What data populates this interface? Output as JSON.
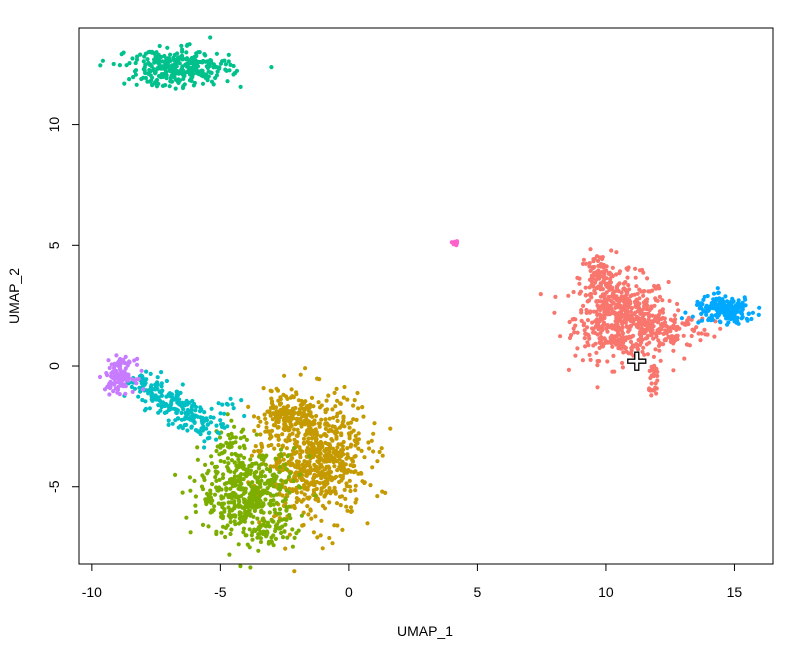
{
  "chart_data": {
    "type": "scatter",
    "title": "",
    "xlabel": "UMAP_1",
    "ylabel": "UMAP_2",
    "xlim": [
      -10.5,
      16.5
    ],
    "ylim": [
      -8.2,
      14.0
    ],
    "x_ticks": [
      -10,
      -5,
      0,
      5,
      10,
      15
    ],
    "x_tick_labels": [
      "-10",
      "-5",
      "0",
      "5",
      "10",
      "15"
    ],
    "y_ticks": [
      -5,
      0,
      5,
      10
    ],
    "y_tick_labels": [
      "-5",
      "0",
      "5",
      "10"
    ],
    "grid": false,
    "legend": "none",
    "series": [
      {
        "color": "#f8766d",
        "clusters": [
          {
            "type": "blob",
            "center": [
              10.6,
              2.0
            ],
            "spread": [
              0.9,
              0.85
            ],
            "n": 520
          },
          {
            "type": "blob",
            "center": [
              9.7,
              3.6
            ],
            "spread": [
              0.35,
              0.55
            ],
            "n": 90
          },
          {
            "type": "blob",
            "center": [
              12.3,
              1.5
            ],
            "spread": [
              0.9,
              0.45
            ],
            "n": 140
          },
          {
            "type": "line",
            "from": [
              11.9,
              0.1
            ],
            "to": [
              11.75,
              -1.2
            ],
            "spread": [
              0.1,
              0.15
            ],
            "n": 30
          }
        ]
      },
      {
        "color": "#c49a00",
        "clusters": [
          {
            "type": "blob",
            "center": [
              -1.3,
              -3.8
            ],
            "spread": [
              1.0,
              1.25
            ],
            "n": 700
          },
          {
            "type": "blob",
            "center": [
              -2.5,
              -2.2
            ],
            "spread": [
              0.55,
              0.45
            ],
            "n": 140
          }
        ]
      },
      {
        "color": "#7cae00",
        "clusters": [
          {
            "type": "blob",
            "center": [
              -3.9,
              -5.3
            ],
            "spread": [
              0.95,
              0.9
            ],
            "n": 470
          },
          {
            "type": "blob",
            "center": [
              -3.2,
              -6.9
            ],
            "spread": [
              0.35,
              0.25
            ],
            "n": 45
          },
          {
            "type": "blob",
            "center": [
              -4.6,
              -3.4
            ],
            "spread": [
              0.4,
              0.5
            ],
            "n": 40
          }
        ]
      },
      {
        "color": "#00c08b",
        "clusters": [
          {
            "type": "blob",
            "center": [
              -6.6,
              12.35
            ],
            "spread": [
              1.0,
              0.38
            ],
            "n": 330
          }
        ]
      },
      {
        "color": "#00bfc4",
        "clusters": [
          {
            "type": "line",
            "from": [
              -8.2,
              -0.6
            ],
            "to": [
              -5.2,
              -2.7
            ],
            "spread": [
              0.32,
              0.32
            ],
            "n": 230
          },
          {
            "type": "blob",
            "center": [
              -4.4,
              -1.7
            ],
            "spread": [
              0.3,
              0.3
            ],
            "n": 10
          }
        ]
      },
      {
        "color": "#00a9ff",
        "clusters": [
          {
            "type": "blob",
            "center": [
              14.6,
              2.3
            ],
            "spread": [
              0.6,
              0.28
            ],
            "n": 190
          }
        ]
      },
      {
        "color": "#c77cff",
        "clusters": [
          {
            "type": "blob",
            "center": [
              -8.9,
              -0.4
            ],
            "spread": [
              0.28,
              0.33
            ],
            "n": 130
          }
        ]
      },
      {
        "color": "#ff61cc",
        "clusters": [
          {
            "type": "blob",
            "center": [
              4.15,
              5.1
            ],
            "spread": [
              0.06,
              0.04
            ],
            "n": 14
          }
        ]
      }
    ]
  },
  "cursor": {
    "x": 11.2,
    "y": 0.2,
    "icon": "crosshair-cursor-icon"
  }
}
